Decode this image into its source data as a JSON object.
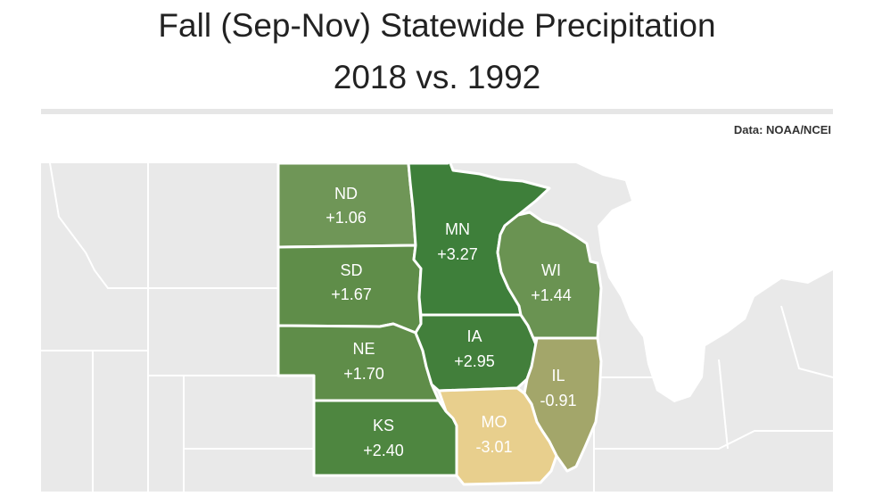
{
  "title": "Fall (Sep-Nov) Statewide Precipitation",
  "subtitle": "2018 vs. 1992",
  "source": "Data: NOAA/NCEI",
  "colors": {
    "wet_strong": "#3e7f3a",
    "wet_moderate": "#5f8d49",
    "wet_light": "#6f9657",
    "dry_light": "#a3a66a",
    "dry_strong": "#e8cf8d",
    "background_land": "#e9e9e9",
    "border": "#ffffff"
  },
  "states": [
    {
      "abbr": "ND",
      "value": "+1.06",
      "fill": "#6f9657"
    },
    {
      "abbr": "SD",
      "value": "+1.67",
      "fill": "#5f8d49"
    },
    {
      "abbr": "NE",
      "value": "+1.70",
      "fill": "#5f8d49"
    },
    {
      "abbr": "KS",
      "value": "+2.40",
      "fill": "#4e8640"
    },
    {
      "abbr": "MN",
      "value": "+3.27",
      "fill": "#3e7f3a"
    },
    {
      "abbr": "IA",
      "value": "+2.95",
      "fill": "#427f3b"
    },
    {
      "abbr": "WI",
      "value": "+1.44",
      "fill": "#6a9352"
    },
    {
      "abbr": "IL",
      "value": "-0.91",
      "fill": "#a3a66a"
    },
    {
      "abbr": "MO",
      "value": "-3.01",
      "fill": "#e8cf8d"
    }
  ]
}
